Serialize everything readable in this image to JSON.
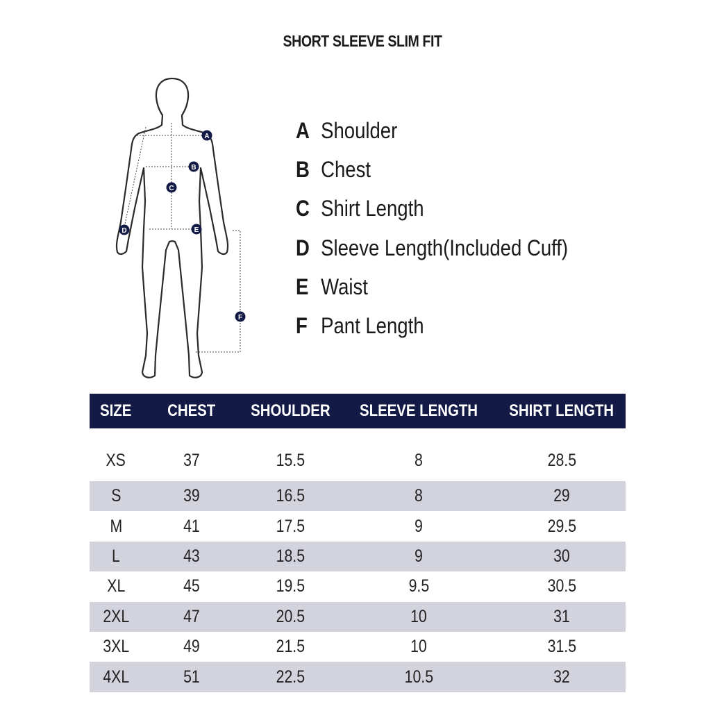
{
  "title": "SHORT SLEEVE SLIM FIT",
  "colors": {
    "header_bg": "#131a45",
    "stripe": "#d3d3dd",
    "marker": "#131a45"
  },
  "figure_markers": [
    "A",
    "B",
    "C",
    "D",
    "E",
    "F"
  ],
  "legend": [
    {
      "key": "A",
      "label": "Shoulder"
    },
    {
      "key": "B",
      "label": "Chest"
    },
    {
      "key": "C",
      "label": "Shirt Length"
    },
    {
      "key": "D",
      "label": "Sleeve Length(Included Cuff)"
    },
    {
      "key": "E",
      "label": "Waist"
    },
    {
      "key": "F",
      "label": "Pant Length"
    }
  ],
  "table": {
    "headers": [
      "SIZE",
      "CHEST",
      "SHOULDER",
      "SLEEVE LENGTH",
      "SHIRT LENGTH"
    ],
    "rows": [
      [
        "XS",
        "37",
        "15.5",
        "8",
        "28.5"
      ],
      [
        "S",
        "39",
        "16.5",
        "8",
        "29"
      ],
      [
        "M",
        "41",
        "17.5",
        "9",
        "29.5"
      ],
      [
        "L",
        "43",
        "18.5",
        "9",
        "30"
      ],
      [
        "XL",
        "45",
        "19.5",
        "9.5",
        "30.5"
      ],
      [
        "2XL",
        "47",
        "20.5",
        "10",
        "31"
      ],
      [
        "3XL",
        "49",
        "21.5",
        "10",
        "31.5"
      ],
      [
        "4XL",
        "51",
        "22.5",
        "10.5",
        "32"
      ]
    ]
  }
}
